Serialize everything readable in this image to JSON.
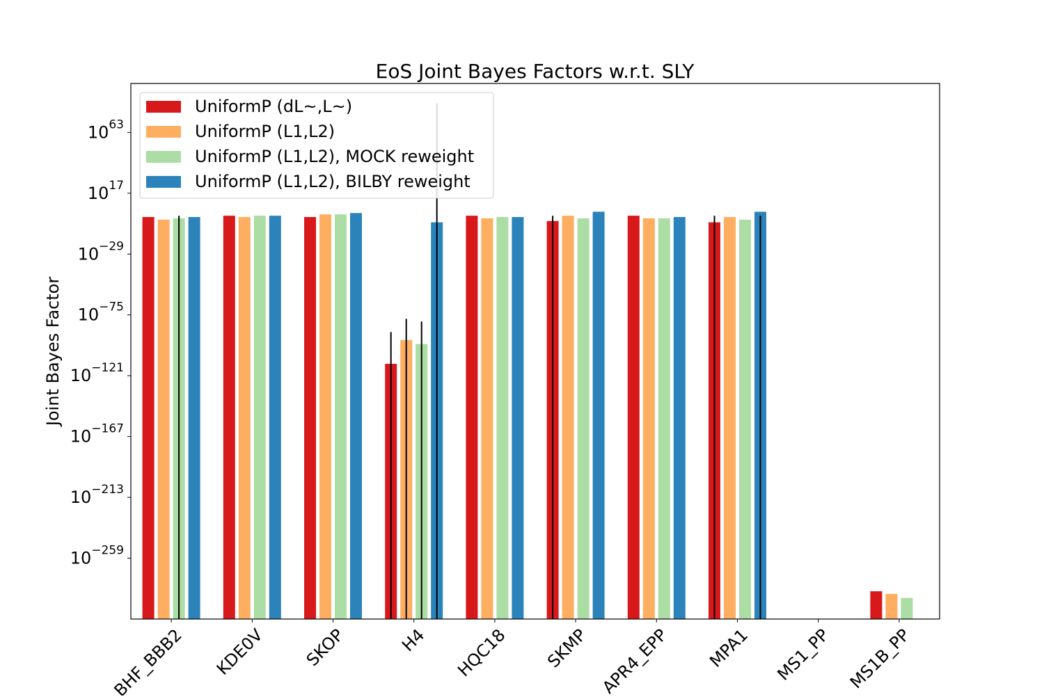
{
  "chart_data": {
    "type": "bar",
    "title": "EoS Joint Bayes Factors w.r.t. SLY",
    "xlabel": "",
    "ylabel": "Joint Bayes Factor",
    "yscale": "log",
    "ylim_exponent": [
      -305,
      100
    ],
    "ytick_exponents": [
      63,
      17,
      -29,
      -75,
      -121,
      -167,
      -213,
      -259
    ],
    "ytick_labels": [
      "10^63",
      "10^17",
      "10^-29",
      "10^-75",
      "10^-121",
      "10^-167",
      "10^-213",
      "10^-259"
    ],
    "categories": [
      "BHF_BBB2",
      "KDE0V",
      "SKOP",
      "H4",
      "HQC18",
      "SKMP",
      "APR4_EPP",
      "MPA1",
      "MS1_PP",
      "MS1B_PP"
    ],
    "legend_position": "upper left",
    "grid": false,
    "value_encoding": "log10 of the Bayes factor; null = no bar",
    "series": [
      {
        "name": "UniformP (dL~,L~)",
        "color": "#d7191c",
        "log10_values": [
          -1,
          0,
          -1,
          -112,
          0,
          -4,
          0,
          -5,
          null,
          -284
        ],
        "log10_err_low": [
          0,
          0,
          0,
          -318,
          0,
          -305,
          0,
          -305,
          null,
          0
        ],
        "log10_err_high": [
          0,
          0,
          0,
          -88,
          0,
          0,
          0,
          0,
          null,
          0
        ]
      },
      {
        "name": "UniformP (L1,L2)",
        "color": "#fdae61",
        "log10_values": [
          -3,
          -1,
          1,
          -94,
          -2,
          0,
          -2,
          -1,
          null,
          -286
        ],
        "log10_err_low": [
          0,
          0,
          0,
          -318,
          0,
          0,
          0,
          0,
          null,
          0
        ],
        "log10_err_high": [
          0,
          0,
          0,
          -78,
          0,
          0,
          0,
          0,
          null,
          0
        ]
      },
      {
        "name": "UniformP (L1,L2), MOCK reweight",
        "color": "#abdda4",
        "log10_values": [
          -2,
          0,
          1,
          -97,
          -1,
          -2,
          -2,
          -3,
          null,
          -289
        ],
        "log10_err_low": [
          -305,
          0,
          0,
          -318,
          0,
          0,
          0,
          0,
          null,
          0
        ],
        "log10_err_high": [
          0,
          0,
          0,
          -80,
          0,
          0,
          0,
          0,
          null,
          0
        ]
      },
      {
        "name": "UniformP (L1,L2), BILBY reweight",
        "color": "#2b83ba",
        "log10_values": [
          -1,
          0,
          2,
          -5,
          -1,
          3,
          -1,
          3,
          null,
          null
        ],
        "log10_err_low": [
          0,
          0,
          0,
          -305,
          0,
          0,
          0,
          -305,
          null,
          null
        ],
        "log10_err_high": [
          0,
          0,
          0,
          85,
          0,
          0,
          0,
          0,
          null,
          null
        ]
      }
    ]
  }
}
